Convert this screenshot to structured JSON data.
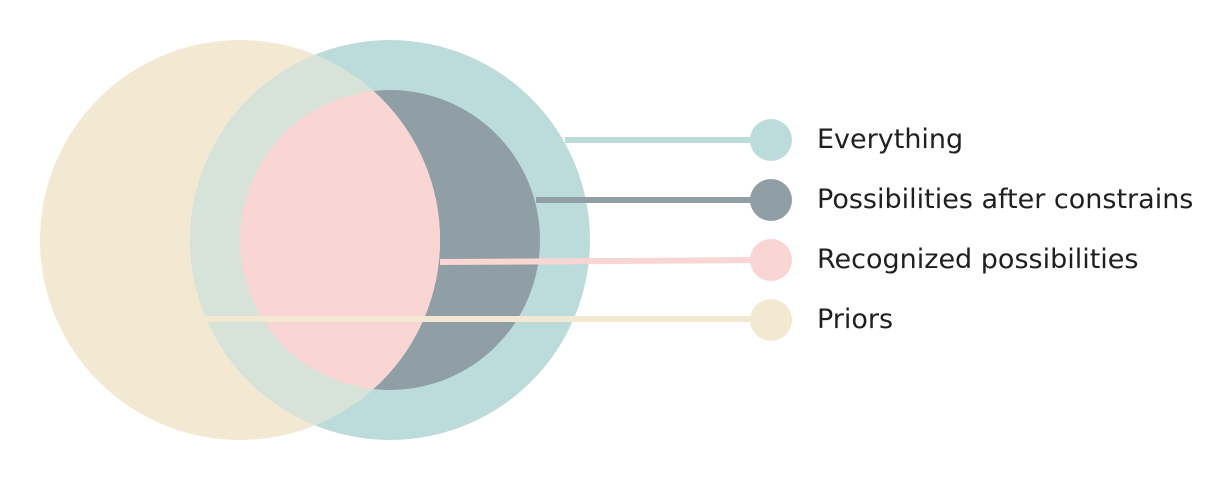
{
  "diagram": {
    "colors": {
      "everything": "#bcdcdb",
      "constraints": "#909fa5",
      "recognized": "#f9d5d4",
      "priors": "#f3e9d2",
      "overlap_priors_everything": "#d7e2d8"
    },
    "legend": [
      {
        "key": "everything",
        "label": "Everything"
      },
      {
        "key": "constraints",
        "label": "Possibilities after constrains"
      },
      {
        "key": "recognized",
        "label": "Recognized possibilities"
      },
      {
        "key": "priors",
        "label": "Priors"
      }
    ]
  }
}
